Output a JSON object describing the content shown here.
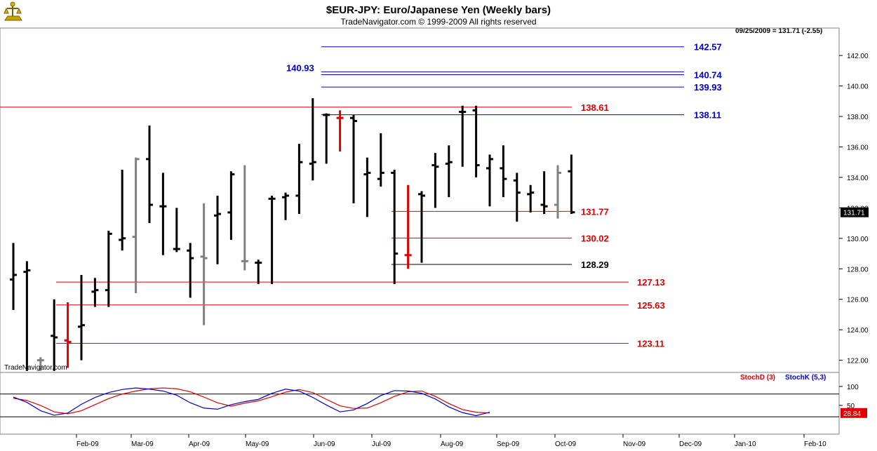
{
  "header": {
    "title": "$EUR-JPY:  Euro/Japanese Yen  (Weekly bars)",
    "subtitle": "TradeNavigator.com © 1999-2009 All rights reserved",
    "stamp": "09/25/2009 = 131.71 (-2.55)",
    "watermark": "TradeNavigator.com"
  },
  "chart_data": [
    {
      "type": "ohlc",
      "title": "$EUR-JPY:  Euro/Japanese Yen  (Weekly bars)",
      "ylim": [
        121.2,
        143.8
      ],
      "y_ticks": [
        "142.00",
        "140.00",
        "138.00",
        "136.00",
        "134.00",
        "132.00",
        "130.00",
        "128.00",
        "126.00",
        "124.00",
        "122.00"
      ],
      "last_price_label": "131.71",
      "colors": {
        "up": "#000000",
        "down": "#000000",
        "gray": "#808080",
        "red": "#e00000",
        "blue": "#0000cc"
      },
      "bars": [
        {
          "h": 129.7,
          "l": 125.3,
          "o": 127.3,
          "c": 127.6,
          "color": "#000000"
        },
        {
          "h": 128.5,
          "l": 121.3,
          "o": 127.8,
          "c": 127.9,
          "color": "#000000"
        },
        {
          "h": 122.2,
          "l": 121.3,
          "o": 122.0,
          "c": 122.0,
          "color": "#808080"
        },
        {
          "h": 126.0,
          "l": 121.3,
          "o": 123.6,
          "c": 123.5,
          "color": "#000000"
        },
        {
          "h": 125.8,
          "l": 121.5,
          "o": 123.3,
          "c": 123.2,
          "color": "#e00000"
        },
        {
          "h": 127.6,
          "l": 122.0,
          "o": 124.2,
          "c": 124.3,
          "color": "#000000"
        },
        {
          "h": 127.4,
          "l": 125.5,
          "o": 126.5,
          "c": 126.6,
          "color": "#000000"
        },
        {
          "h": 130.5,
          "l": 125.5,
          "o": 126.6,
          "c": 130.3,
          "color": "#000000"
        },
        {
          "h": 134.5,
          "l": 129.2,
          "o": 129.9,
          "c": 130.0,
          "color": "#000000"
        },
        {
          "h": 135.3,
          "l": 126.4,
          "o": 130.1,
          "c": 135.2,
          "color": "#808080"
        },
        {
          "h": 137.4,
          "l": 131.0,
          "o": 135.2,
          "c": 132.2,
          "color": "#000000"
        },
        {
          "h": 134.3,
          "l": 128.9,
          "o": 132.1,
          "c": 132.1,
          "color": "#000000"
        },
        {
          "h": 132.0,
          "l": 129.1,
          "o": 129.3,
          "c": 129.3,
          "color": "#000000"
        },
        {
          "h": 129.7,
          "l": 126.1,
          "o": 129.2,
          "c": 128.7,
          "color": "#000000"
        },
        {
          "h": 132.3,
          "l": 124.3,
          "o": 128.8,
          "c": 128.7,
          "color": "#808080"
        },
        {
          "h": 132.8,
          "l": 128.3,
          "o": 131.5,
          "c": 131.6,
          "color": "#000000"
        },
        {
          "h": 134.4,
          "l": 129.9,
          "o": 131.7,
          "c": 134.2,
          "color": "#000000"
        },
        {
          "h": 134.8,
          "l": 127.9,
          "o": 128.5,
          "c": 128.5,
          "color": "#808080"
        },
        {
          "h": 128.6,
          "l": 127.0,
          "o": 128.4,
          "c": 128.4,
          "color": "#000000"
        },
        {
          "h": 132.8,
          "l": 127.0,
          "o": 132.6,
          "c": 132.6,
          "color": "#000000"
        },
        {
          "h": 133.0,
          "l": 131.2,
          "o": 132.7,
          "c": 132.8,
          "color": "#000000"
        },
        {
          "h": 136.2,
          "l": 131.6,
          "o": 132.8,
          "c": 135.0,
          "color": "#000000"
        },
        {
          "h": 139.2,
          "l": 133.8,
          "o": 134.9,
          "c": 135.0,
          "color": "#000000"
        },
        {
          "h": 138.2,
          "l": 134.9,
          "o": 138.1,
          "c": 138.1,
          "color": "#000000"
        },
        {
          "h": 138.4,
          "l": 135.7,
          "o": 137.9,
          "c": 137.9,
          "color": "#e00000"
        },
        {
          "h": 138.1,
          "l": 132.3,
          "o": 137.9,
          "c": 137.7,
          "color": "#000000"
        },
        {
          "h": 135.3,
          "l": 131.4,
          "o": 134.2,
          "c": 134.3,
          "color": "#000000"
        },
        {
          "h": 136.9,
          "l": 133.4,
          "o": 133.9,
          "c": 134.3,
          "color": "#000000"
        },
        {
          "h": 134.5,
          "l": 127.0,
          "o": 134.3,
          "c": 129.0,
          "color": "#000000"
        },
        {
          "h": 133.5,
          "l": 128.0,
          "o": 128.9,
          "c": 128.9,
          "color": "#e00000"
        },
        {
          "h": 133.1,
          "l": 128.4,
          "o": 132.9,
          "c": 132.8,
          "color": "#000000"
        },
        {
          "h": 135.6,
          "l": 132.0,
          "o": 134.8,
          "c": 134.7,
          "color": "#000000"
        },
        {
          "h": 136.1,
          "l": 132.7,
          "o": 134.9,
          "c": 135.0,
          "color": "#000000"
        },
        {
          "h": 138.7,
          "l": 134.7,
          "o": 138.3,
          "c": 138.3,
          "color": "#000000"
        },
        {
          "h": 138.7,
          "l": 134.0,
          "o": 138.4,
          "c": 134.8,
          "color": "#000000"
        },
        {
          "h": 135.5,
          "l": 132.1,
          "o": 134.6,
          "c": 135.2,
          "color": "#000000"
        },
        {
          "h": 136.1,
          "l": 132.7,
          "o": 134.6,
          "c": 133.9,
          "color": "#000000"
        },
        {
          "h": 134.3,
          "l": 131.1,
          "o": 133.8,
          "c": 133.0,
          "color": "#000000"
        },
        {
          "h": 133.5,
          "l": 131.7,
          "o": 132.9,
          "c": 133.0,
          "color": "#000000"
        },
        {
          "h": 134.4,
          "l": 131.6,
          "o": 132.2,
          "c": 132.1,
          "color": "#000000"
        },
        {
          "h": 134.8,
          "l": 131.3,
          "o": 132.2,
          "c": 134.3,
          "color": "#808080"
        },
        {
          "h": 135.5,
          "l": 131.6,
          "o": 134.4,
          "c": 131.71,
          "color": "#000000"
        }
      ],
      "levels": [
        {
          "value": 142.57,
          "label": "142.57",
          "color": "#0000cc",
          "style": "full"
        },
        {
          "value": 140.93,
          "label": "140.93",
          "color": "#0000cc",
          "style": "left-label"
        },
        {
          "value": 140.74,
          "label": "140.74",
          "color": "#0000cc",
          "style": "full"
        },
        {
          "value": 139.93,
          "label": "139.93",
          "color": "#0000cc",
          "style": "full"
        },
        {
          "value": 138.11,
          "label": "138.11",
          "color": "#0000cc",
          "style": "full-right"
        },
        {
          "value": 138.61,
          "label": "138.61",
          "color": "#e00000",
          "style": "red"
        },
        {
          "value": 131.77,
          "label": "131.77",
          "color": "#e00000",
          "style": "red"
        },
        {
          "value": 130.02,
          "label": "130.02",
          "color": "#e00000",
          "style": "red"
        },
        {
          "value": 128.29,
          "label": "128.29",
          "color": "#000000",
          "style": "red"
        },
        {
          "value": 127.13,
          "label": "127.13",
          "color": "#e00000",
          "style": "red"
        },
        {
          "value": 125.63,
          "label": "125.63",
          "color": "#e00000",
          "style": "red"
        },
        {
          "value": 123.11,
          "label": "123.11",
          "color": "#e00000",
          "style": "red"
        }
      ],
      "x_ticks": [
        "Feb-09",
        "Mar-09",
        "Apr-09",
        "May-09",
        "Jun-09",
        "Jul-09",
        "Aug-09",
        "Sep-09",
        "Oct-09",
        "Nov-09",
        "Dec-09",
        "Jan-10",
        "Feb-10"
      ]
    },
    {
      "type": "line",
      "title": "",
      "ylim": [
        0,
        100
      ],
      "y_ticks": [
        "100",
        "50"
      ],
      "reference_lines": [
        80,
        20
      ],
      "last_value_label": "28.84",
      "series": [
        {
          "name": "StochD (3)",
          "color": "#e00000",
          "values": [
            69,
            63,
            50,
            33,
            28,
            36,
            52,
            68,
            80,
            88,
            94,
            96,
            94,
            86,
            72,
            57,
            48,
            56,
            62,
            73,
            85,
            92,
            84,
            66,
            49,
            42,
            43,
            57,
            74,
            86,
            88,
            74,
            55,
            39,
            32,
            30
          ]
        },
        {
          "name": "StochK (5,3)",
          "color": "#0000cc",
          "values": [
            72,
            58,
            36,
            24,
            30,
            53,
            71,
            84,
            92,
            96,
            93,
            88,
            77,
            57,
            43,
            40,
            52,
            60,
            66,
            82,
            93,
            88,
            71,
            51,
            33,
            38,
            55,
            76,
            89,
            88,
            82,
            67,
            46,
            31,
            23,
            32
          ]
        }
      ]
    }
  ]
}
